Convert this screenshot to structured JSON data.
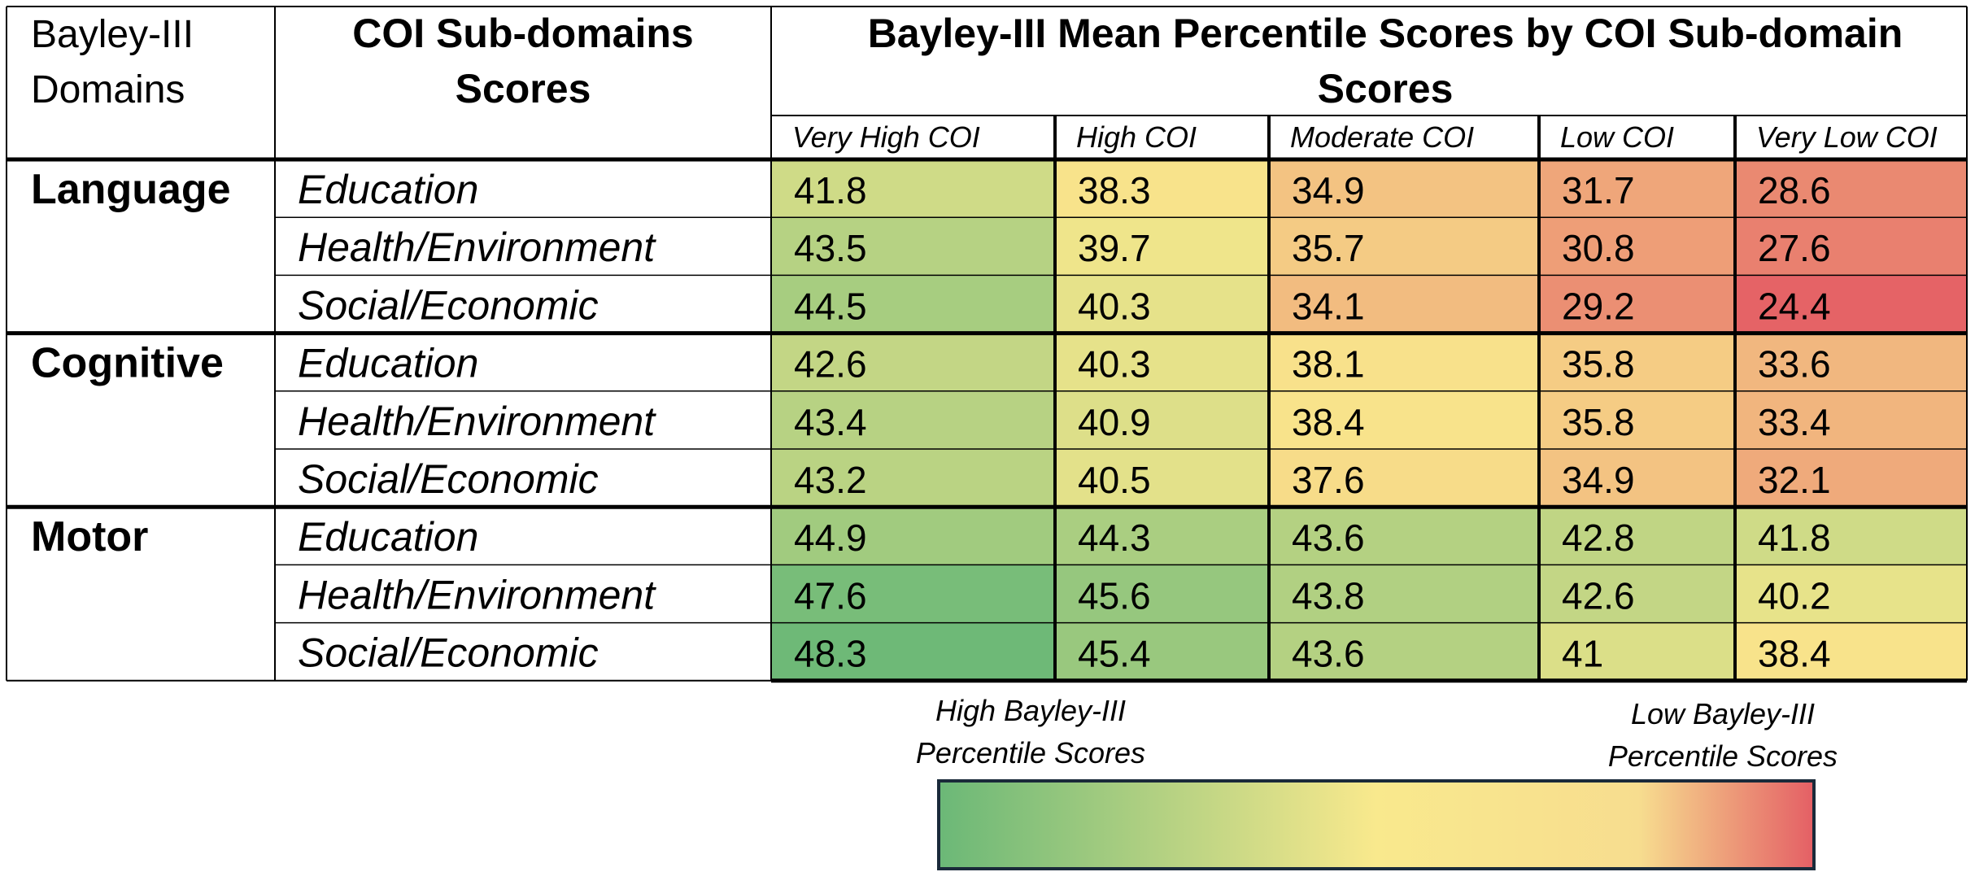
{
  "chart_data": {
    "type": "heatmap",
    "title": "Bayley-III Mean Percentile Scores by COI Sub-domain Scores",
    "header": {
      "domains_col": "Bayley-III Domains",
      "subdomains_col": "COI Sub-domains Scores"
    },
    "columns": [
      "Very High COI",
      "High COI",
      "Moderate COI",
      "Low COI",
      "Very Low COI"
    ],
    "domains": [
      {
        "name": "Language",
        "rows": [
          {
            "subdomain": "Education",
            "values": [
              "41.8",
              "38.3",
              "34.9",
              "31.7",
              "28.6"
            ]
          },
          {
            "subdomain": "Health/Environment",
            "values": [
              "43.5",
              "39.7",
              "35.7",
              "30.8",
              "27.6"
            ]
          },
          {
            "subdomain": "Social/Economic",
            "values": [
              "44.5",
              "40.3",
              "34.1",
              "29.2",
              "24.4"
            ]
          }
        ]
      },
      {
        "name": "Cognitive",
        "rows": [
          {
            "subdomain": "Education",
            "values": [
              "42.6",
              "40.3",
              "38.1",
              "35.8",
              "33.6"
            ]
          },
          {
            "subdomain": "Health/Environment",
            "values": [
              "43.4",
              "40.9",
              "38.4",
              "35.8",
              "33.4"
            ]
          },
          {
            "subdomain": "Social/Economic",
            "values": [
              "43.2",
              "40.5",
              "37.6",
              "34.9",
              "32.1"
            ]
          }
        ]
      },
      {
        "name": "Motor",
        "rows": [
          {
            "subdomain": "Education",
            "values": [
              "44.9",
              "44.3",
              "43.6",
              "42.8",
              "41.8"
            ]
          },
          {
            "subdomain": "Health/Environment",
            "values": [
              "47.6",
              "45.6",
              "43.8",
              "42.6",
              "40.2"
            ]
          },
          {
            "subdomain": "Social/Economic",
            "values": [
              "48.3",
              "45.4",
              "43.6",
              "41",
              "38.4"
            ]
          }
        ]
      }
    ],
    "color_scale": {
      "high_label": "High Bayley-III Percentile Scores",
      "low_label": "Low Bayley-III Percentile Scores",
      "stops": [
        "#6bb877",
        "#f9e98d",
        "#e45f65"
      ]
    }
  }
}
